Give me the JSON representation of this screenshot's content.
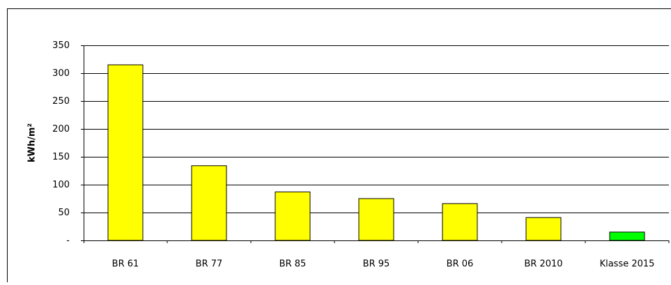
{
  "chart_data": {
    "type": "bar",
    "y_label": "kWh/m²",
    "categories": [
      "BR 61",
      "BR 77",
      "BR 85",
      "BR 95",
      "BR 06",
      "BR 2010",
      "Klasse 2015"
    ],
    "values": [
      315,
      134,
      87,
      75,
      66,
      41,
      15
    ],
    "colors": [
      "#ffff00",
      "#ffff00",
      "#ffff00",
      "#ffff00",
      "#ffff00",
      "#ffff00",
      "#00ff00"
    ],
    "ylim": [
      0,
      350
    ],
    "yticks": [
      {
        "value": 0,
        "label": "-"
      },
      50,
      100,
      150,
      200,
      250,
      300,
      350
    ],
    "grid": true
  }
}
